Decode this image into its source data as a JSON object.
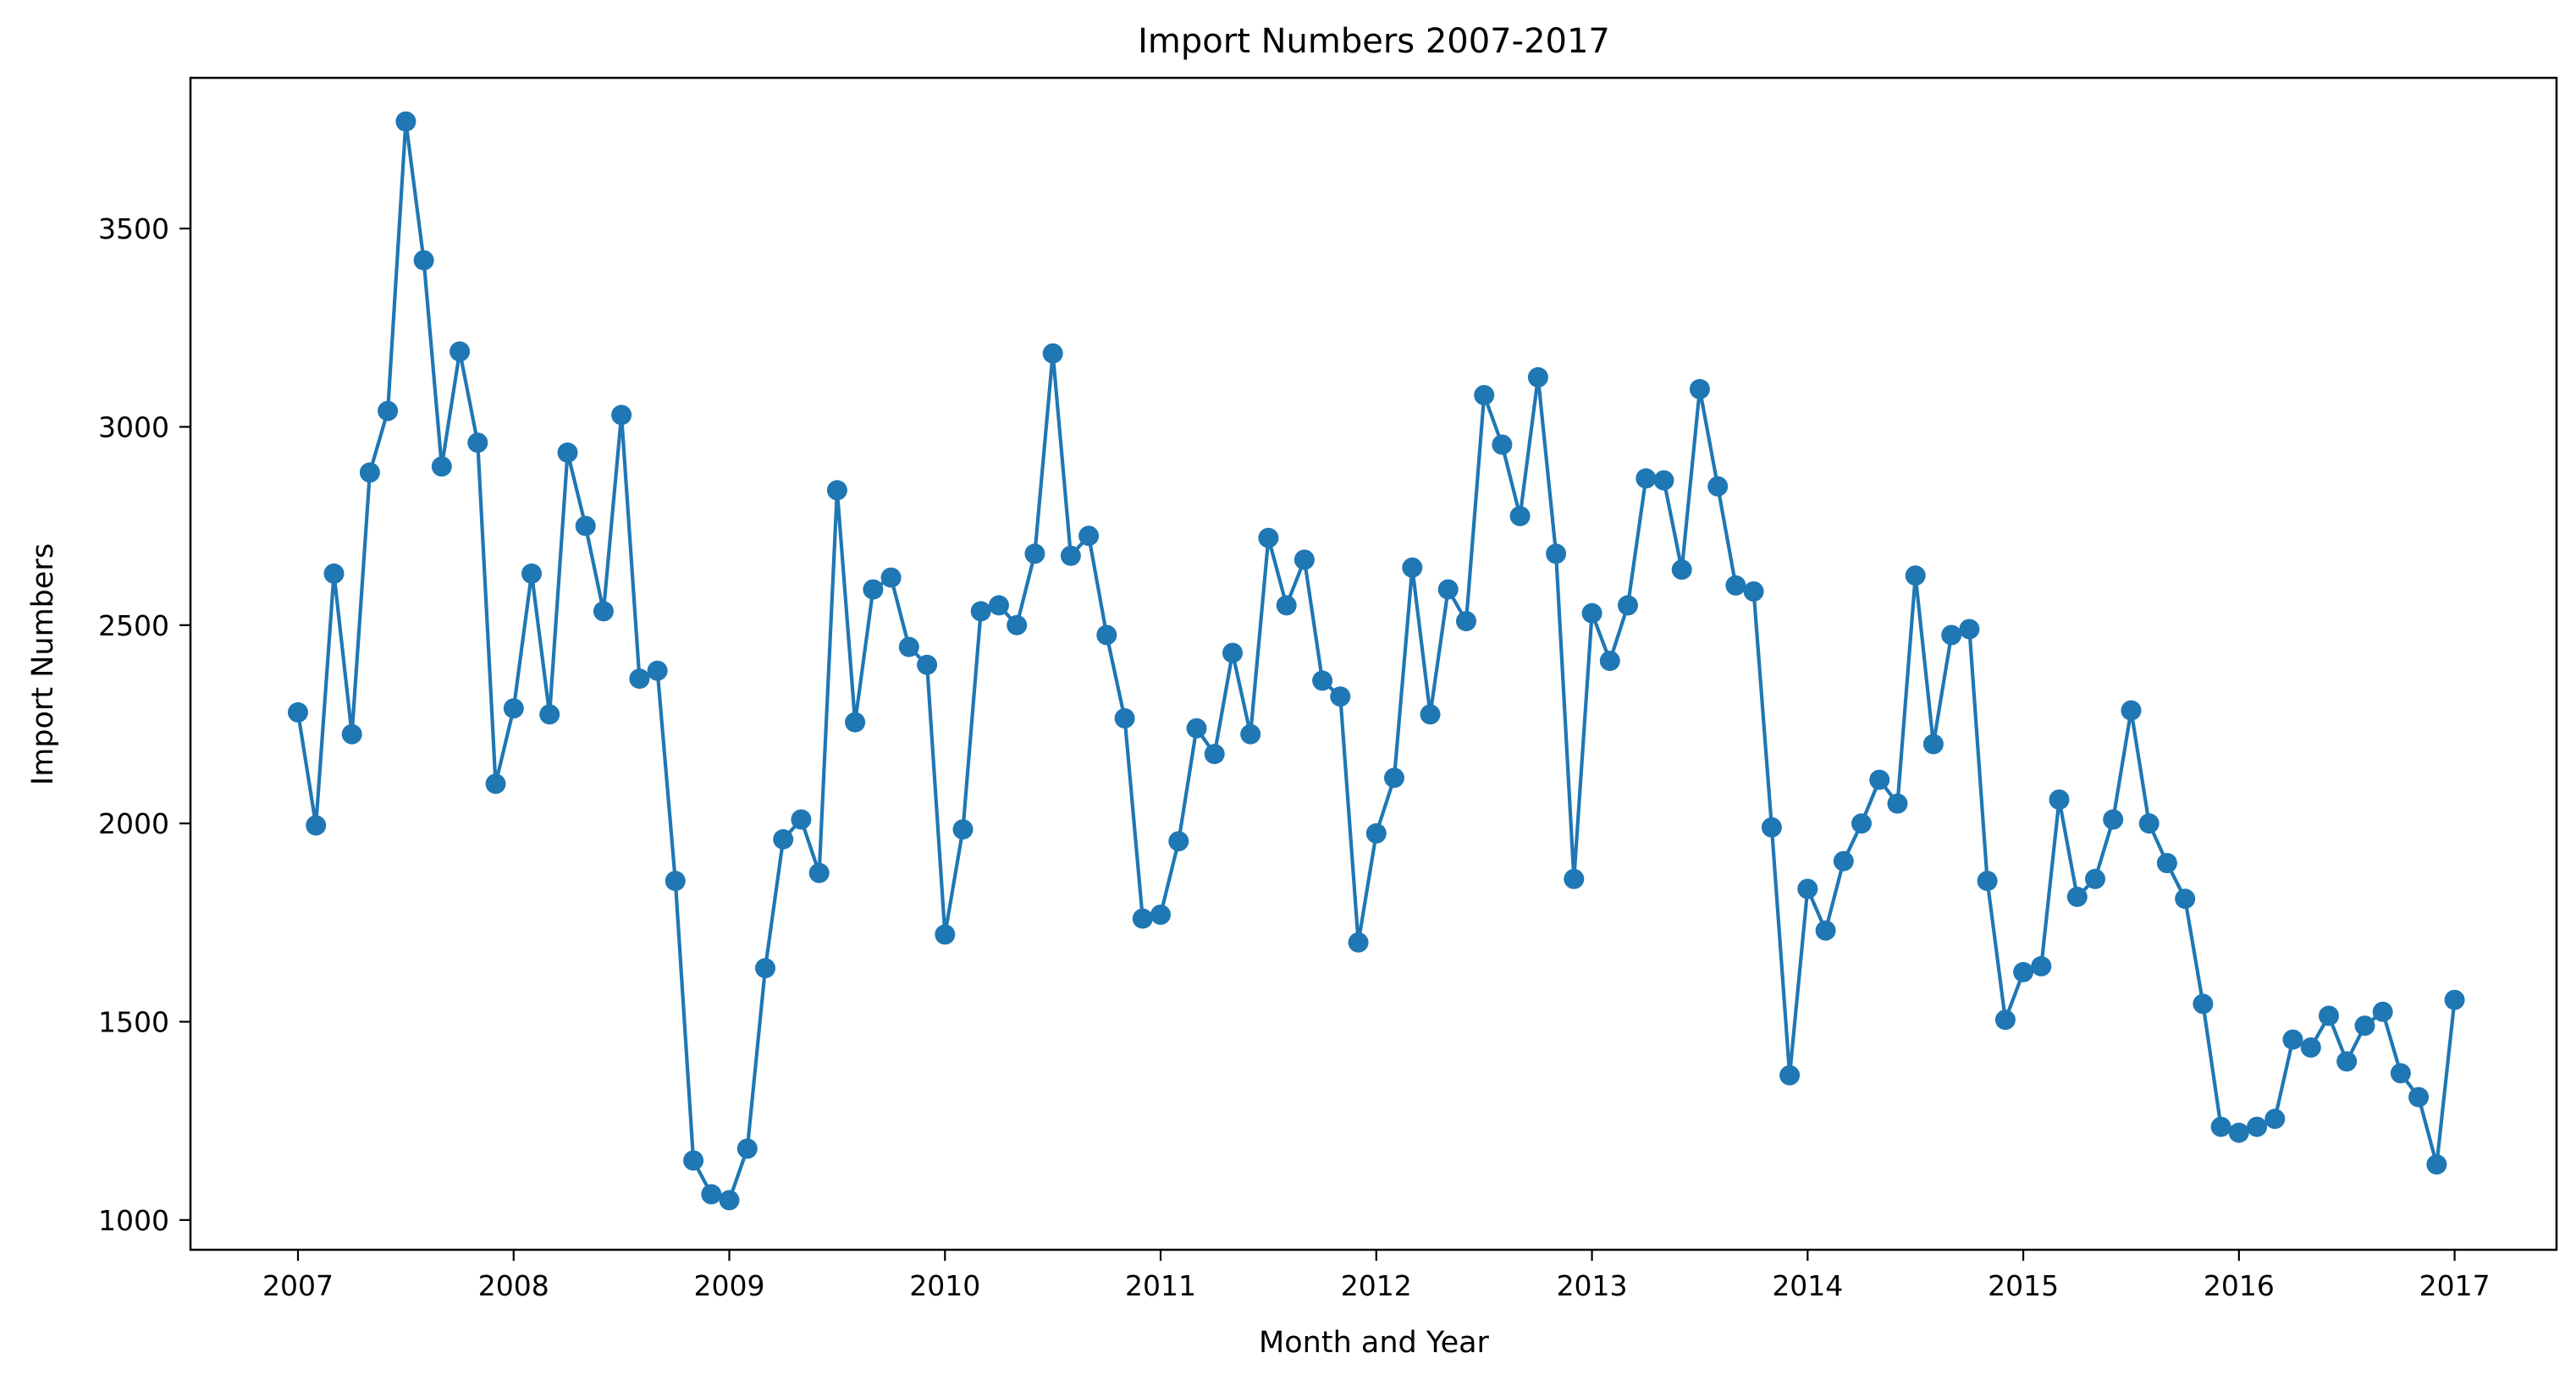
{
  "chart_data": {
    "type": "line",
    "title": "Import Numbers 2007-2017",
    "xlabel": "Month and Year",
    "ylabel": "Import Numbers",
    "x_start": "2007-01",
    "x_ticks": [
      "2007",
      "2008",
      "2009",
      "2010",
      "2011",
      "2012",
      "2013",
      "2014",
      "2015",
      "2016",
      "2017"
    ],
    "y_ticks": [
      1000,
      1500,
      2000,
      2500,
      3000,
      3500
    ],
    "ylim": [
      925,
      3880
    ],
    "grid": false,
    "legend": "none",
    "color": "#1f77b4",
    "marker": "circle",
    "series": [
      {
        "x": [
          "2007-01",
          "2007-02",
          "2007-03",
          "2007-04",
          "2007-05",
          "2007-06",
          "2007-07",
          "2007-08",
          "2007-09",
          "2007-10",
          "2007-11",
          "2007-12",
          "2008-01",
          "2008-02",
          "2008-03",
          "2008-04",
          "2008-05",
          "2008-06",
          "2008-07",
          "2008-08",
          "2008-09",
          "2008-10",
          "2008-11",
          "2008-12",
          "2009-01",
          "2009-02",
          "2009-03",
          "2009-04",
          "2009-05",
          "2009-06",
          "2009-07",
          "2009-08",
          "2009-09",
          "2009-10",
          "2009-11",
          "2009-12",
          "2010-01",
          "2010-02",
          "2010-03",
          "2010-04",
          "2010-05",
          "2010-06",
          "2010-07",
          "2010-08",
          "2010-09",
          "2010-10",
          "2010-11",
          "2010-12",
          "2011-01",
          "2011-02",
          "2011-03",
          "2011-04",
          "2011-05",
          "2011-06",
          "2011-07",
          "2011-08",
          "2011-09",
          "2011-10",
          "2011-11",
          "2011-12",
          "2012-01",
          "2012-02",
          "2012-03",
          "2012-04",
          "2012-05",
          "2012-06",
          "2012-07",
          "2012-08",
          "2012-09",
          "2012-10",
          "2012-11",
          "2012-12",
          "2013-01",
          "2013-02",
          "2013-03",
          "2013-04",
          "2013-05",
          "2013-06",
          "2013-07",
          "2013-08",
          "2013-09",
          "2013-10",
          "2013-11",
          "2013-12",
          "2014-01",
          "2014-02",
          "2014-03",
          "2014-04",
          "2014-05",
          "2014-06",
          "2014-07",
          "2014-08",
          "2014-09",
          "2014-10",
          "2014-11",
          "2014-12",
          "2015-01",
          "2015-02",
          "2015-03",
          "2015-04",
          "2015-05",
          "2015-06",
          "2015-07",
          "2015-08",
          "2015-09",
          "2015-10",
          "2015-11",
          "2015-12",
          "2016-01",
          "2016-02",
          "2016-03",
          "2016-04",
          "2016-05",
          "2016-06",
          "2016-07",
          "2016-08",
          "2016-09",
          "2016-10",
          "2016-11",
          "2016-12",
          "2017-01"
        ],
        "values": [
          2280,
          1995,
          2630,
          2225,
          2885,
          3040,
          3770,
          3420,
          2900,
          3190,
          2960,
          2100,
          2290,
          2630,
          2275,
          2935,
          2750,
          2535,
          3030,
          2365,
          2385,
          1855,
          1150,
          1065,
          1050,
          1180,
          1635,
          1960,
          2010,
          1875,
          2840,
          2255,
          2590,
          2620,
          2445,
          2400,
          1720,
          1985,
          2535,
          2550,
          2500,
          2680,
          3185,
          2675,
          2725,
          2475,
          2265,
          1760,
          1770,
          1955,
          2240,
          2175,
          2430,
          2225,
          2720,
          2550,
          2665,
          2360,
          2320,
          1700,
          1975,
          2115,
          2645,
          2275,
          2590,
          2510,
          3080,
          2955,
          2775,
          3125,
          2680,
          1860,
          2530,
          2410,
          2550,
          2870,
          2865,
          2640,
          3095,
          2850,
          2600,
          2585,
          1990,
          1365,
          1835,
          1730,
          1905,
          2000,
          2110,
          2050,
          2625,
          2200,
          2475,
          2490,
          1855,
          1505,
          1625,
          1640,
          2060,
          1815,
          1860,
          2010,
          2285,
          2000,
          1900,
          1810,
          1545,
          1235,
          1220,
          1235,
          1255,
          1455,
          1435,
          1515,
          1400,
          1490,
          1525,
          1370,
          1310,
          1140,
          1555
        ]
      }
    ]
  }
}
